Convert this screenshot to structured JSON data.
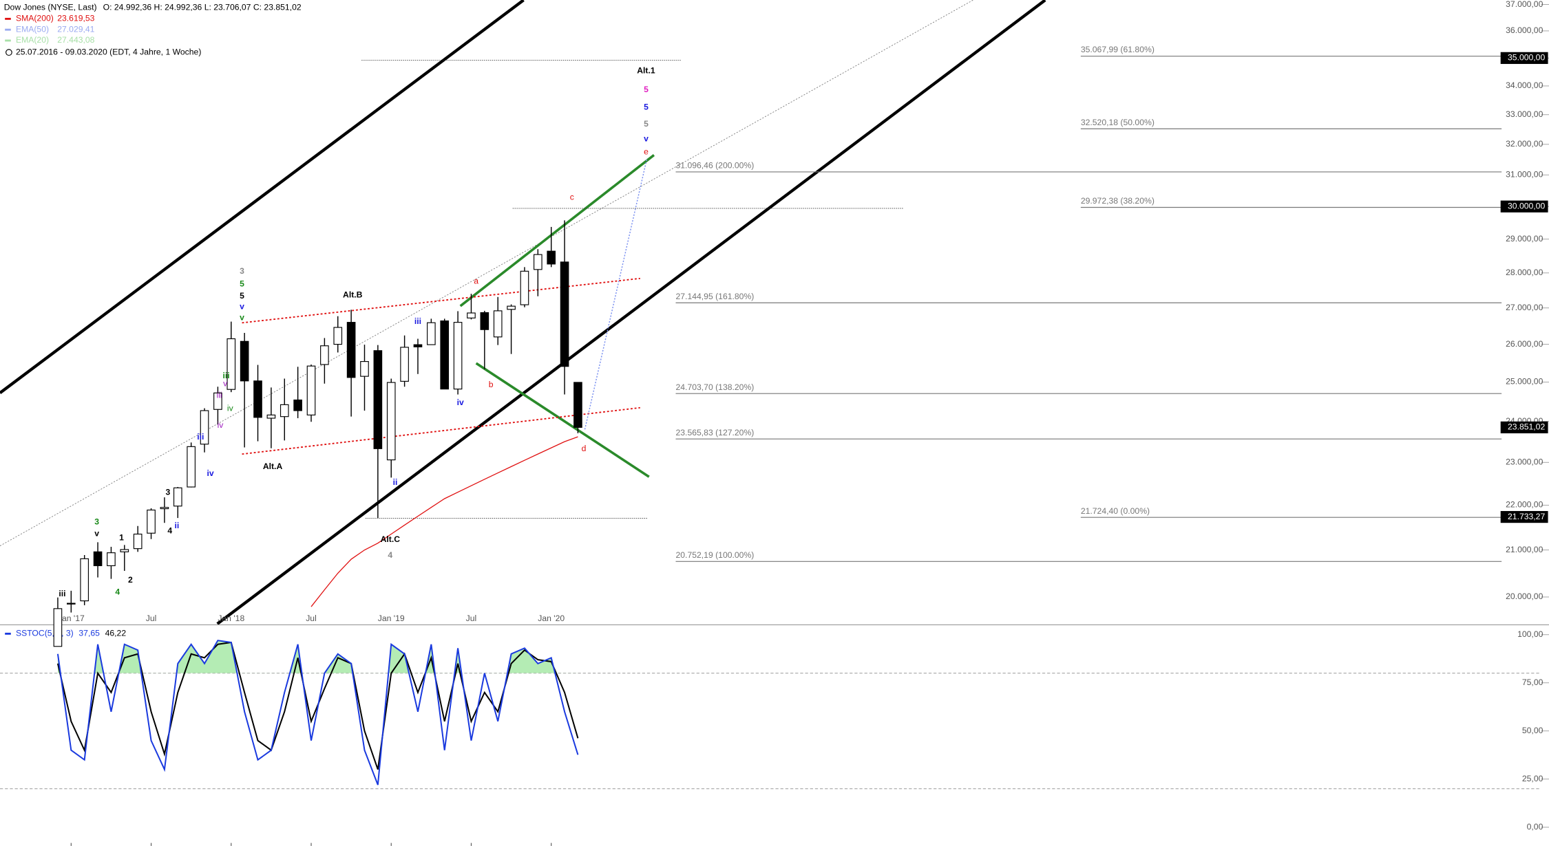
{
  "chart_data": [
    {
      "type": "candlestick",
      "title": "Dow Jones (NYSE, Last)",
      "ohlc_text": "O: 24.992,36  H: 24.992,36  L: 23.706,07  C: 23.851,02",
      "legend": [
        {
          "name": "SMA(200)",
          "value": "23.619,53",
          "color": "#e01010"
        },
        {
          "name": "EMA(50)",
          "value": "27.029,41",
          "color": "#9aaaf0"
        },
        {
          "name": "EMA(20)",
          "value": "27.443,08",
          "color": "#a8e0a8"
        }
      ],
      "period": "25.07.2016 - 09.03.2020   (EDT, 4 Jahre, 1 Woche)",
      "log": true,
      "ylim": [
        19450,
        37170
      ],
      "yticks": [
        {
          "value": 20000,
          "label": "20.000,00"
        },
        {
          "value": 21000,
          "label": "21.000,00"
        },
        {
          "value": 22000,
          "label": "22.000,00"
        },
        {
          "value": 23000,
          "label": "23.000,00"
        },
        {
          "value": 24000,
          "label": "24.000,00"
        },
        {
          "value": 25000,
          "label": "25.000,00"
        },
        {
          "value": 26000,
          "label": "26.000,00"
        },
        {
          "value": 27000,
          "label": "27.000,00"
        },
        {
          "value": 28000,
          "label": "28.000,00"
        },
        {
          "value": 29000,
          "label": "29.000,00"
        },
        {
          "value": 30000,
          "label": "30.000,00"
        },
        {
          "value": 31000,
          "label": "31.000,00"
        },
        {
          "value": 32000,
          "label": "32.000,00"
        },
        {
          "value": 33000,
          "label": "33.000,00"
        },
        {
          "value": 34000,
          "label": "34.000,00"
        },
        {
          "value": 35000,
          "label": "35.000,00"
        },
        {
          "value": 36000,
          "label": "36.000,00"
        },
        {
          "value": 37000,
          "label": "37.000,00"
        }
      ],
      "categories": [
        null,
        "Jan '17",
        null,
        null,
        null,
        null,
        null,
        "Jul",
        null,
        null,
        null,
        null,
        null,
        "Jan '18",
        null,
        null,
        null,
        null,
        null,
        "Jul",
        null,
        null,
        null,
        null,
        null,
        "Jan '19",
        null,
        null,
        null,
        null,
        null,
        "Jul",
        null,
        null,
        null,
        null,
        null,
        "Jan '20",
        null,
        null
      ],
      "open": [
        19000,
        19870,
        19920,
        20960,
        20660,
        20960,
        21030,
        21370,
        21920,
        21980,
        22420,
        23440,
        24300,
        24810,
        26080,
        25030,
        24080,
        24120,
        24540,
        24160,
        25460,
        26000,
        26600,
        25150,
        25830,
        23060,
        25020,
        25990,
        25990,
        26640,
        24820,
        26720,
        26870,
        26200,
        26960,
        27090,
        28100,
        28640,
        28320,
        24992.36
      ],
      "high": [
        19990,
        20130,
        20890,
        21170,
        21070,
        21110,
        21530,
        21930,
        22180,
        22420,
        23480,
        24330,
        24880,
        26620,
        26310,
        25450,
        24860,
        25090,
        25400,
        25460,
        26170,
        26770,
        26950,
        25990,
        25980,
        25090,
        26240,
        26150,
        26700,
        26700,
        26910,
        27400,
        26920,
        27310,
        27100,
        28170,
        28700,
        29370,
        29570,
        24992.36
      ],
      "low": [
        19000,
        19680,
        19830,
        20410,
        20380,
        20550,
        20960,
        21240,
        21600,
        21710,
        22410,
        23240,
        23920,
        24740,
        23360,
        23510,
        23340,
        23530,
        24080,
        23990,
        24960,
        25780,
        24120,
        24270,
        21710,
        22640,
        24880,
        25210,
        26000,
        24860,
        24680,
        26680,
        25340,
        25980,
        25740,
        27020,
        27330,
        28170,
        24680,
        23706.07
      ],
      "close": [
        19760,
        19860,
        20810,
        20660,
        20940,
        21010,
        21350,
        21890,
        21950,
        22400,
        23380,
        24270,
        24720,
        26150,
        25030,
        24100,
        24160,
        24420,
        24270,
        25420,
        25960,
        26460,
        25120,
        25540,
        23330,
        24990,
        25920,
        25930,
        26590,
        24820,
        26600,
        26860,
        26400,
        26920,
        27050,
        28050,
        28540,
        28260,
        25410,
        23851.02
      ],
      "sma": {
        "name": "SMA(200)",
        "color": "#e01010",
        "values": [
          null,
          null,
          null,
          null,
          null,
          null,
          null,
          null,
          null,
          null,
          null,
          null,
          null,
          null,
          null,
          null,
          null,
          null,
          null,
          19800,
          20150,
          20500,
          20800,
          21000,
          21150,
          21350,
          21550,
          21750,
          21950,
          22150,
          22300,
          22450,
          22600,
          22750,
          22900,
          23050,
          23200,
          23350,
          23500,
          23619.53
        ]
      },
      "fib_levels": [
        {
          "value": 35067.99,
          "label": "35.067,99 (61.80%)"
        },
        {
          "value": 32520.18,
          "label": "32.520,18 (50.00%)"
        },
        {
          "value": 29972.38,
          "label": "29.972,38 (38.20%)"
        },
        {
          "value": 21724.4,
          "label": "21.724,40 (0.00%)"
        },
        {
          "value": 31096.46,
          "label": "31.096,46 (200.00%)"
        },
        {
          "value": 27144.95,
          "label": "27.144,95 (161.80%)"
        },
        {
          "value": 24703.7,
          "label": "24.703,70 (138.20%)"
        },
        {
          "value": 23565.83,
          "label": "23.565,83 (127.20%)"
        },
        {
          "value": 20752.19,
          "label": "20.752,19 (100.00%)"
        }
      ],
      "price_tags": [
        {
          "value": 35000,
          "label": "35.000,00"
        },
        {
          "value": 30000,
          "label": "30.000,00"
        },
        {
          "value": 23851.02,
          "label": "23.851,02"
        },
        {
          "value": 21733.27,
          "label": "21.733,27"
        }
      ],
      "wave_labels": [
        {
          "text": "Alt.1",
          "color": "#000000"
        },
        {
          "text": "5",
          "color": "#e020c0"
        },
        {
          "text": "5",
          "color": "#1a1adf"
        },
        {
          "text": "5",
          "color": "#888888"
        },
        {
          "text": "v",
          "color": "#1a1adf"
        },
        {
          "text": "e",
          "color": "#e01010"
        },
        {
          "text": "c",
          "color": "#e01010"
        },
        {
          "text": "a",
          "color": "#e01010"
        },
        {
          "text": "b",
          "color": "#e01010"
        },
        {
          "text": "d",
          "color": "#e01010"
        },
        {
          "text": "3",
          "color": "#888888"
        },
        {
          "text": "5",
          "color": "#1a8a1a"
        },
        {
          "text": "5",
          "color": "#000000"
        },
        {
          "text": "v",
          "color": "#1a1adf"
        },
        {
          "text": "v",
          "color": "#1a8a1a"
        },
        {
          "text": "Alt.B",
          "color": "#000000"
        },
        {
          "text": "iii",
          "color": "#1a1adf"
        },
        {
          "text": "iv",
          "color": "#1a1adf"
        },
        {
          "text": "Alt.A",
          "color": "#000000"
        },
        {
          "text": "Alt.C",
          "color": "#000000"
        },
        {
          "text": "4",
          "color": "#888888"
        },
        {
          "text": "ii",
          "color": "#1a1adf"
        },
        {
          "text": "iii",
          "color": "#1a8a1a"
        },
        {
          "text": "v",
          "color": "#a020c0"
        },
        {
          "text": "iv",
          "color": "#1a8a1a"
        },
        {
          "text": "iii",
          "color": "#a020c0"
        },
        {
          "text": "iv",
          "color": "#a020c0"
        },
        {
          "text": "iii",
          "color": "#1a1adf"
        },
        {
          "text": "iv",
          "color": "#1a1adf"
        },
        {
          "text": "3",
          "color": "#000000"
        },
        {
          "text": "ii",
          "color": "#1a1adf"
        },
        {
          "text": "4",
          "color": "#000000"
        },
        {
          "text": "3",
          "color": "#1a8a1a"
        },
        {
          "text": "v",
          "color": "#000000"
        },
        {
          "text": "1",
          "color": "#000000"
        },
        {
          "text": "2",
          "color": "#000000"
        },
        {
          "text": "4",
          "color": "#1a8a1a"
        },
        {
          "text": "iii",
          "color": "#000000"
        }
      ]
    },
    {
      "type": "line",
      "title": "SSTOC(5, 5, 3)",
      "k_text": "37,65",
      "d_text": "46,22",
      "ylim": [
        -9.7,
        104.6
      ],
      "yticks": [
        {
          "value": 0,
          "label": "0,00"
        },
        {
          "value": 25,
          "label": "25,00"
        },
        {
          "value": 50,
          "label": "50,00"
        },
        {
          "value": 75,
          "label": "75,00"
        },
        {
          "value": 100,
          "label": "100,00"
        }
      ],
      "levels": [
        80,
        20
      ],
      "fill_color": "#b4ecb4",
      "series": [
        {
          "name": "%K",
          "color": "#1a3adf",
          "values": [
            90,
            40,
            35,
            95,
            60,
            95,
            92,
            45,
            30,
            85,
            95,
            85,
            97,
            96,
            60,
            35,
            40,
            70,
            95,
            45,
            80,
            90,
            85,
            40,
            22,
            95,
            90,
            60,
            95,
            40,
            93,
            45,
            80,
            55,
            90,
            93,
            85,
            88,
            60,
            37.65
          ]
        },
        {
          "name": "%D",
          "color": "#000000",
          "values": [
            85,
            55,
            40,
            80,
            70,
            88,
            90,
            60,
            38,
            70,
            90,
            88,
            95,
            96,
            70,
            45,
            40,
            60,
            88,
            55,
            72,
            88,
            85,
            50,
            30,
            80,
            90,
            70,
            88,
            55,
            85,
            55,
            70,
            60,
            85,
            92,
            87,
            86,
            70,
            46.22
          ]
        }
      ]
    }
  ]
}
